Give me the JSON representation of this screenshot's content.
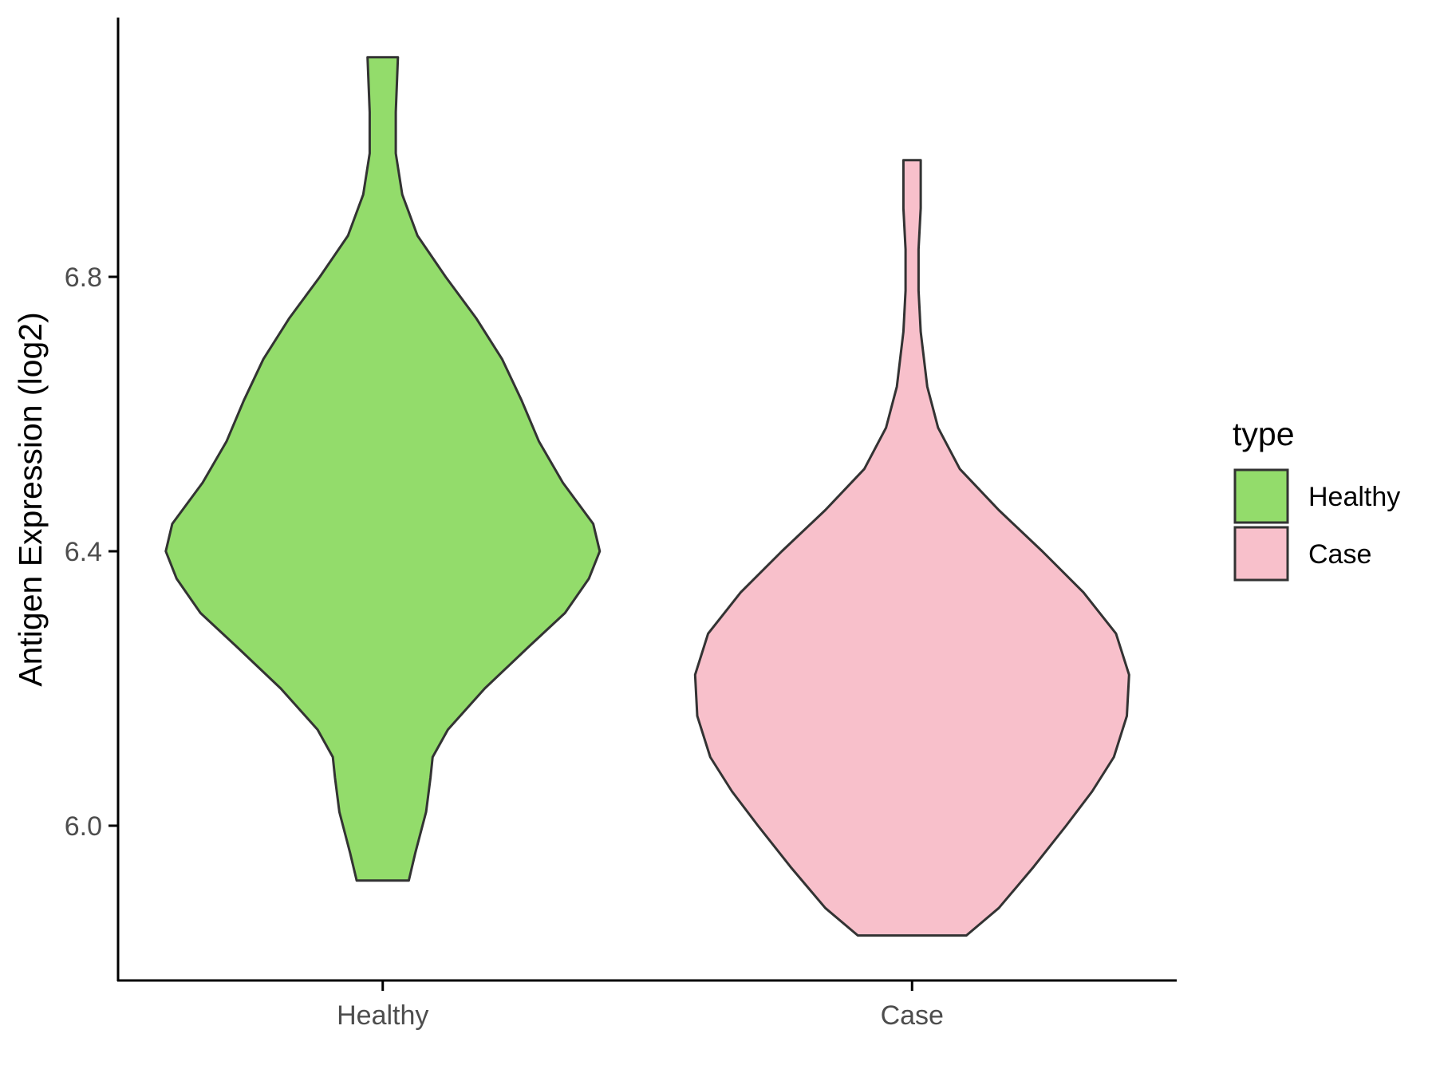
{
  "chart_data": {
    "type": "violin",
    "xlabel": "",
    "ylabel": "Antigen Expression (log2)",
    "ylim": [
      5.78,
      7.18
    ],
    "y_ticks": [
      6.0,
      6.4,
      6.8
    ],
    "y_tick_labels": [
      "6.0",
      "6.4",
      "6.8"
    ],
    "categories": [
      "Healthy",
      "Case"
    ],
    "grid": false,
    "legend": {
      "title": "type",
      "position": "right",
      "entries": [
        {
          "label": "Healthy",
          "color": "#93dc6b"
        },
        {
          "label": "Case",
          "color": "#f8c0cb"
        }
      ]
    },
    "series": [
      {
        "category": "Healthy",
        "color": "#93dc6b",
        "min": 5.92,
        "max": 7.12,
        "density": [
          [
            5.92,
            0.12
          ],
          [
            5.96,
            0.15
          ],
          [
            6.02,
            0.2
          ],
          [
            6.07,
            0.22
          ],
          [
            6.1,
            0.23
          ],
          [
            6.14,
            0.3
          ],
          [
            6.2,
            0.47
          ],
          [
            6.26,
            0.67
          ],
          [
            6.31,
            0.84
          ],
          [
            6.36,
            0.95
          ],
          [
            6.4,
            1.0
          ],
          [
            6.44,
            0.97
          ],
          [
            6.5,
            0.83
          ],
          [
            6.56,
            0.72
          ],
          [
            6.62,
            0.64
          ],
          [
            6.68,
            0.55
          ],
          [
            6.74,
            0.43
          ],
          [
            6.8,
            0.29
          ],
          [
            6.86,
            0.16
          ],
          [
            6.92,
            0.09
          ],
          [
            6.98,
            0.06
          ],
          [
            7.04,
            0.06
          ],
          [
            7.12,
            0.07
          ]
        ]
      },
      {
        "category": "Case",
        "color": "#f8c0cb",
        "min": 5.84,
        "max": 6.97,
        "density": [
          [
            5.84,
            0.25
          ],
          [
            5.88,
            0.4
          ],
          [
            5.94,
            0.56
          ],
          [
            6.0,
            0.71
          ],
          [
            6.05,
            0.83
          ],
          [
            6.1,
            0.93
          ],
          [
            6.16,
            0.99
          ],
          [
            6.22,
            1.0
          ],
          [
            6.28,
            0.94
          ],
          [
            6.34,
            0.79
          ],
          [
            6.4,
            0.6
          ],
          [
            6.46,
            0.4
          ],
          [
            6.52,
            0.22
          ],
          [
            6.58,
            0.12
          ],
          [
            6.64,
            0.07
          ],
          [
            6.72,
            0.04
          ],
          [
            6.78,
            0.03
          ],
          [
            6.84,
            0.03
          ],
          [
            6.9,
            0.04
          ],
          [
            6.97,
            0.04
          ]
        ]
      }
    ]
  }
}
